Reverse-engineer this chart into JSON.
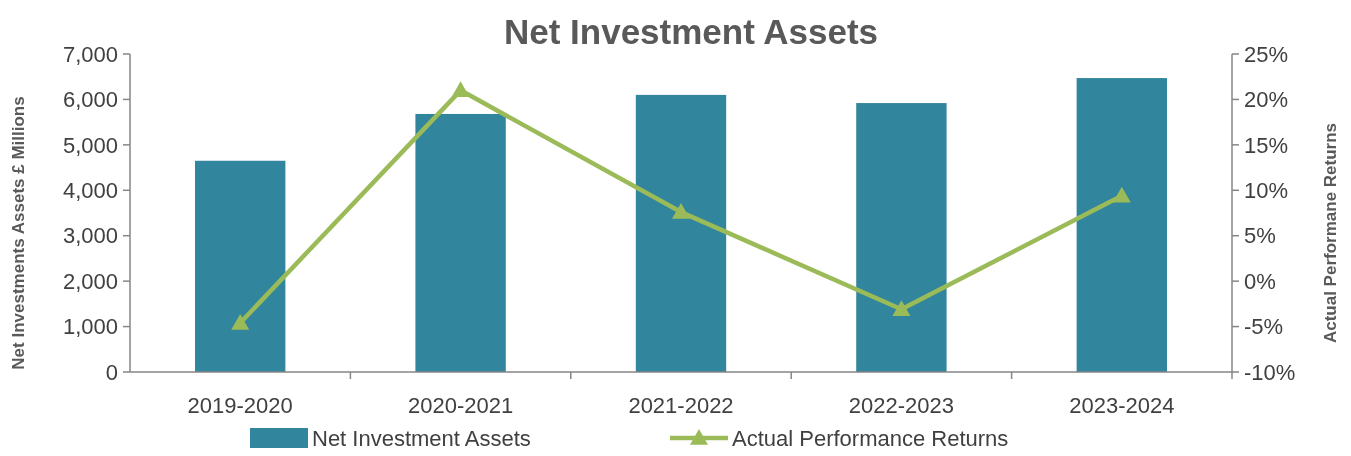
{
  "chart_data": {
    "type": "bar",
    "title": "Net Investment Assets",
    "ylabel": "Net Investments Assets £ Millions",
    "y2label": "Actual Performane Returns",
    "categories": [
      "2019-2020",
      "2020-2021",
      "2021-2022",
      "2022-2023",
      "2023-2024"
    ],
    "series": [
      {
        "name": "Net Investment Assets",
        "color": "#31859c",
        "values": [
          4650,
          5680,
          6100,
          5920,
          6470
        ]
      },
      {
        "name": "Actual Performance Returns",
        "type": "line",
        "axis": "y2",
        "color": "#9bbb59",
        "values": [
          -4.6,
          21.0,
          7.6,
          -3.1,
          9.4
        ]
      }
    ],
    "ylim": [
      0,
      7000
    ],
    "yticks": [
      0,
      {
        "value": 1000,
        "label": "1,000"
      },
      {
        "value": 2000,
        "label": "2,000"
      },
      {
        "value": 3000,
        "label": "3,000"
      },
      {
        "value": 4000,
        "label": "4,000"
      },
      {
        "value": 5000,
        "label": "5,000"
      },
      {
        "value": 6000,
        "label": "6,000"
      },
      {
        "value": 7000,
        "label": "7,000"
      }
    ],
    "y2lim": [
      -10,
      25
    ],
    "y2ticks": [
      {
        "value": -10,
        "label": "-10%"
      },
      {
        "value": -5,
        "label": "-5%"
      },
      {
        "value": 0,
        "label": "0%"
      },
      {
        "value": 5,
        "label": "5%"
      },
      {
        "value": 10,
        "label": "10%"
      },
      {
        "value": 15,
        "label": "15%"
      },
      {
        "value": 20,
        "label": "20%"
      },
      {
        "value": 25,
        "label": "25%"
      }
    ],
    "legend": "bottom",
    "marker": "triangle",
    "line_style": "solid",
    "grid": false
  }
}
